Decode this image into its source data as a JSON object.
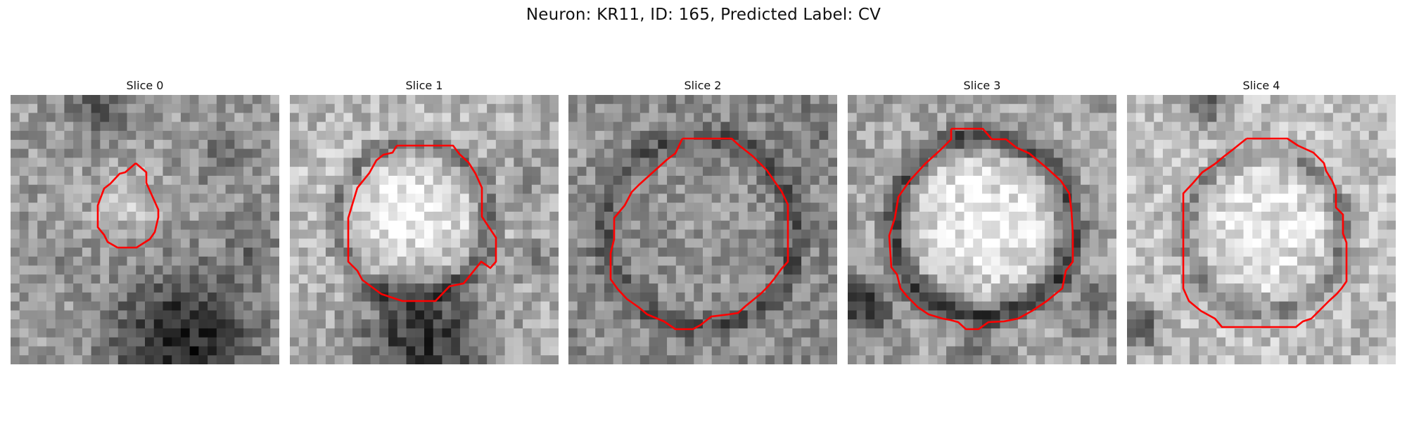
{
  "figure": {
    "title": "Neuron: KR11, ID: 165, Predicted Label: CV"
  },
  "panels": [
    {
      "title": "Slice 0"
    },
    {
      "title": "Slice 1"
    },
    {
      "title": "Slice 2"
    },
    {
      "title": "Slice 3"
    },
    {
      "title": "Slice 4"
    }
  ],
  "colors": {
    "contour": "#ff0000",
    "image_colormap": "grayscale"
  }
}
